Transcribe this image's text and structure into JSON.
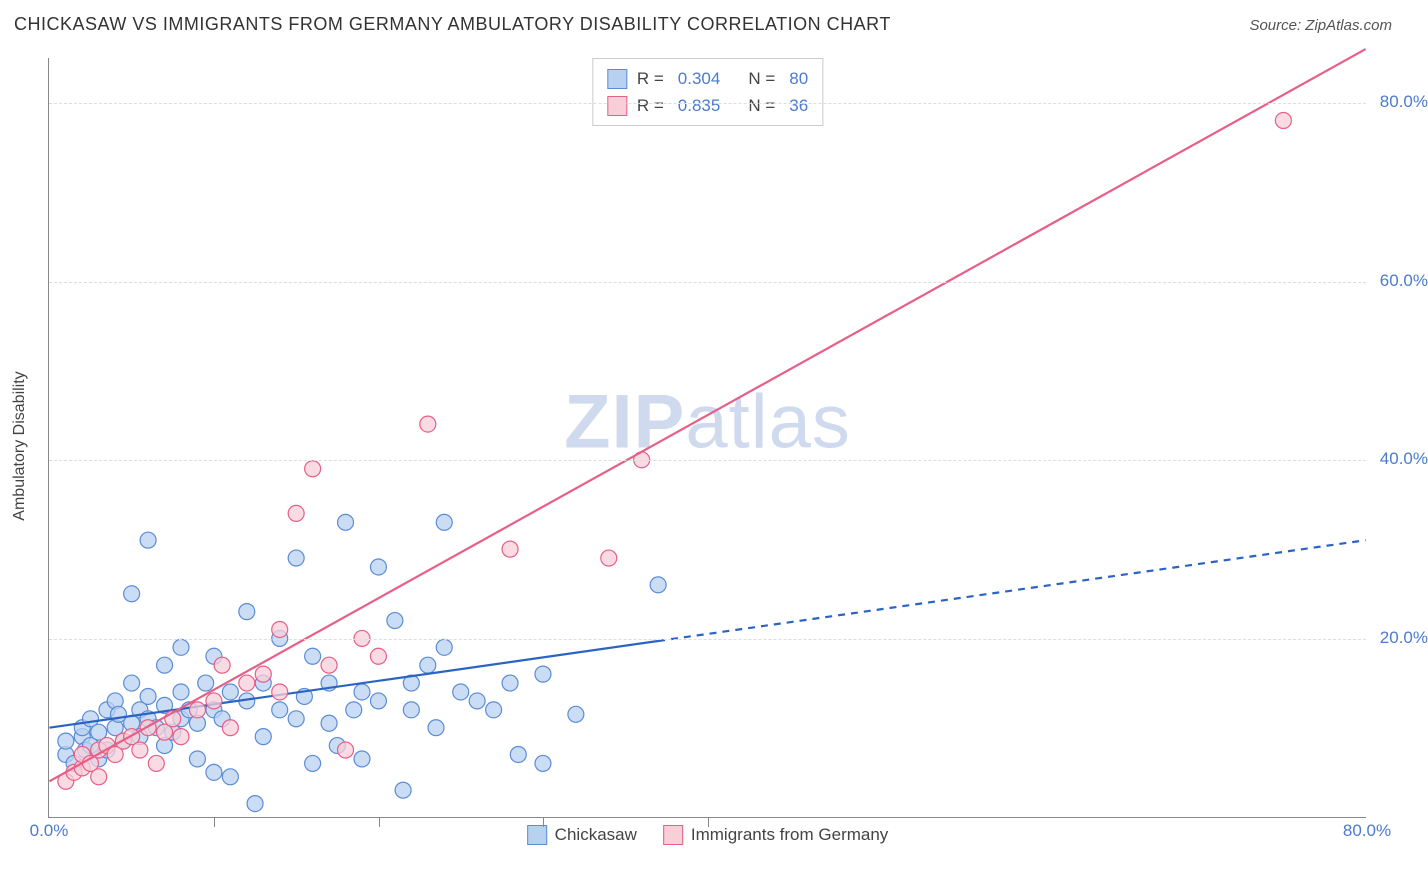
{
  "title": "CHICKASAW VS IMMIGRANTS FROM GERMANY AMBULATORY DISABILITY CORRELATION CHART",
  "source": "Source: ZipAtlas.com",
  "watermark_prefix": "ZIP",
  "watermark_suffix": "atlas",
  "y_axis_label": "Ambulatory Disability",
  "chart": {
    "type": "scatter",
    "xlim": [
      0,
      80
    ],
    "ylim": [
      0,
      85
    ],
    "xticks": [
      {
        "v": 0,
        "label": "0.0%"
      },
      {
        "v": 80,
        "label": "80.0%"
      }
    ],
    "yticks": [
      {
        "v": 20,
        "label": "20.0%"
      },
      {
        "v": 40,
        "label": "40.0%"
      },
      {
        "v": 60,
        "label": "60.0%"
      },
      {
        "v": 80,
        "label": "80.0%"
      }
    ],
    "x_inner_ticks": [
      10,
      20,
      30,
      40
    ],
    "grid_y": [
      20,
      40,
      60,
      80
    ],
    "grid_color": "#dddddd",
    "background_color": "#ffffff",
    "marker_radius": 8,
    "marker_stroke_width": 1.2,
    "series": [
      {
        "name": "Chickasaw",
        "fill": "#b9d1f0",
        "stroke": "#5a8cd6",
        "r_value": "0.304",
        "n_value": "80",
        "trend": {
          "x1": 0,
          "y1": 10,
          "x2": 80,
          "y2": 31,
          "solid_until_x": 37,
          "color": "#2b63c4",
          "width": 2.2,
          "dash": "7,6"
        },
        "points": [
          [
            1,
            7
          ],
          [
            1,
            8.5
          ],
          [
            1.5,
            6
          ],
          [
            2,
            9
          ],
          [
            2,
            10
          ],
          [
            2.2,
            7.5
          ],
          [
            2.5,
            8
          ],
          [
            2.5,
            11
          ],
          [
            3,
            6.5
          ],
          [
            3,
            9.5
          ],
          [
            3.5,
            12
          ],
          [
            3.5,
            7.5
          ],
          [
            4,
            10
          ],
          [
            4,
            13
          ],
          [
            4.2,
            11.5
          ],
          [
            4.5,
            8.5
          ],
          [
            5,
            10.5
          ],
          [
            5,
            15
          ],
          [
            5,
            25
          ],
          [
            5.5,
            9
          ],
          [
            5.5,
            12
          ],
          [
            6,
            11
          ],
          [
            6,
            13.5
          ],
          [
            6,
            31
          ],
          [
            6.5,
            10
          ],
          [
            7,
            8
          ],
          [
            7,
            12.5
          ],
          [
            7,
            17
          ],
          [
            7.5,
            9.5
          ],
          [
            8,
            14
          ],
          [
            8,
            19
          ],
          [
            8,
            11
          ],
          [
            8.5,
            12
          ],
          [
            9,
            10.5
          ],
          [
            9,
            6.5
          ],
          [
            9.5,
            15
          ],
          [
            10,
            12
          ],
          [
            10,
            18
          ],
          [
            10,
            5
          ],
          [
            10.5,
            11
          ],
          [
            11,
            4.5
          ],
          [
            11,
            14
          ],
          [
            12,
            23
          ],
          [
            12,
            13
          ],
          [
            12.5,
            1.5
          ],
          [
            13,
            15
          ],
          [
            13,
            9
          ],
          [
            14,
            12
          ],
          [
            14,
            20
          ],
          [
            15,
            29
          ],
          [
            15,
            11
          ],
          [
            15.5,
            13.5
          ],
          [
            16,
            6
          ],
          [
            16,
            18
          ],
          [
            17,
            15
          ],
          [
            17,
            10.5
          ],
          [
            17.5,
            8
          ],
          [
            18,
            33
          ],
          [
            18.5,
            12
          ],
          [
            19,
            14
          ],
          [
            19,
            6.5
          ],
          [
            20,
            28
          ],
          [
            20,
            13
          ],
          [
            21,
            22
          ],
          [
            21.5,
            3
          ],
          [
            22,
            15
          ],
          [
            22,
            12
          ],
          [
            23,
            17
          ],
          [
            23.5,
            10
          ],
          [
            24,
            33
          ],
          [
            24,
            19
          ],
          [
            25,
            14
          ],
          [
            26,
            13
          ],
          [
            27,
            12
          ],
          [
            28,
            15
          ],
          [
            28.5,
            7
          ],
          [
            30,
            16
          ],
          [
            30,
            6
          ],
          [
            32,
            11.5
          ],
          [
            37,
            26
          ]
        ]
      },
      {
        "name": "Immigrants from Germany",
        "fill": "#f8cfd9",
        "stroke": "#e75e87",
        "r_value": "0.835",
        "n_value": "36",
        "trend": {
          "x1": 0,
          "y1": 4,
          "x2": 80,
          "y2": 86,
          "solid_until_x": 80,
          "color": "#e75e87",
          "width": 2.2,
          "dash": null
        },
        "points": [
          [
            1,
            4
          ],
          [
            1.5,
            5
          ],
          [
            2,
            5.5
          ],
          [
            2,
            7
          ],
          [
            2.5,
            6
          ],
          [
            3,
            7.5
          ],
          [
            3,
            4.5
          ],
          [
            3.5,
            8
          ],
          [
            4,
            7
          ],
          [
            4.5,
            8.5
          ],
          [
            5,
            9
          ],
          [
            5.5,
            7.5
          ],
          [
            6,
            10
          ],
          [
            6.5,
            6
          ],
          [
            7,
            9.5
          ],
          [
            7.5,
            11
          ],
          [
            8,
            9
          ],
          [
            9,
            12
          ],
          [
            10,
            13
          ],
          [
            10.5,
            17
          ],
          [
            11,
            10
          ],
          [
            12,
            15
          ],
          [
            13,
            16
          ],
          [
            14,
            21
          ],
          [
            14,
            14
          ],
          [
            15,
            34
          ],
          [
            16,
            39
          ],
          [
            17,
            17
          ],
          [
            18,
            7.5
          ],
          [
            19,
            20
          ],
          [
            23,
            44
          ],
          [
            20,
            18
          ],
          [
            28,
            30
          ],
          [
            34,
            29
          ],
          [
            36,
            40
          ],
          [
            75,
            78
          ]
        ]
      }
    ]
  },
  "legend_top": {
    "r_label": "R =",
    "n_label": "N ="
  },
  "legend_bottom": {
    "items": [
      "Chickasaw",
      "Immigrants from Germany"
    ]
  }
}
